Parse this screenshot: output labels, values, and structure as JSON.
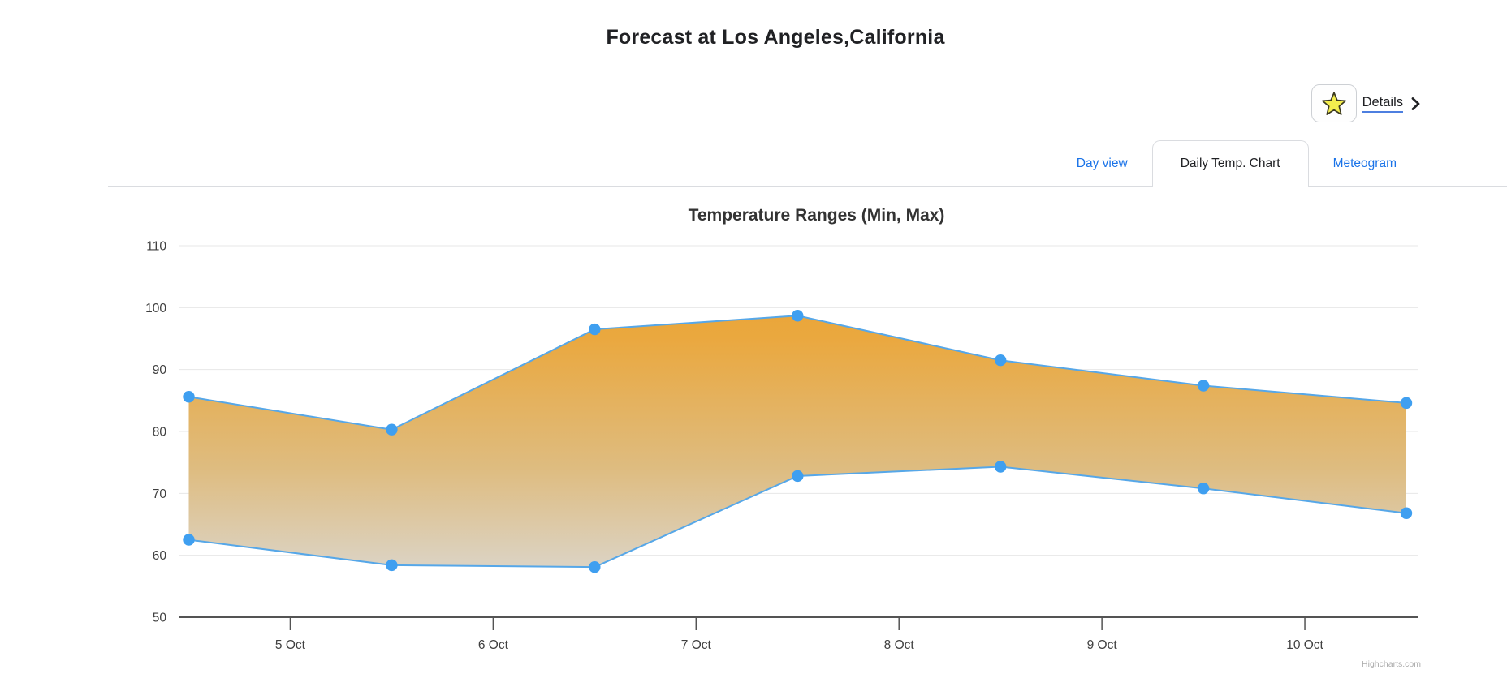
{
  "page": {
    "title": "Forecast at Los Angeles,California"
  },
  "details": {
    "label": "Details"
  },
  "tabs": [
    {
      "label": "Day view",
      "active": false
    },
    {
      "label": "Daily Temp. Chart",
      "active": true
    },
    {
      "label": "Meteogram",
      "active": false
    }
  ],
  "chart_data": {
    "type": "area",
    "subtype": "arearange",
    "title": "Temperature Ranges (Min, Max)",
    "x": [
      4.5,
      5.5,
      6.5,
      7.5,
      8.5,
      9.5,
      10.5
    ],
    "x_unit": "day of October",
    "series": [
      {
        "name": "Max",
        "values": [
          85.6,
          80.3,
          96.5,
          98.7,
          91.5,
          87.4,
          84.6
        ]
      },
      {
        "name": "Min",
        "values": [
          62.5,
          58.4,
          58.1,
          72.8,
          74.3,
          70.8,
          66.8
        ]
      }
    ],
    "xlim": [
      4.45,
      10.56
    ],
    "ylim": [
      50,
      110
    ],
    "y_ticks": [
      50,
      60,
      70,
      80,
      90,
      100,
      110
    ],
    "x_ticks": [
      5,
      6,
      7,
      8,
      9,
      10
    ],
    "x_tick_labels": [
      "5 Oct",
      "6 Oct",
      "7 Oct",
      "8 Oct",
      "9 Oct",
      "10 Oct"
    ],
    "grid": true,
    "legend": "none",
    "credit": "Highcharts.com",
    "colors": {
      "line": "#56a7e8",
      "marker": "#3f9ff0",
      "grid_line": "#e7e7e7",
      "axis_line": "#545454",
      "tick_label": "#404040",
      "title": "#333333",
      "credit": "#aaaaaa",
      "area_stops": [
        [
          0,
          "#eda02b"
        ],
        [
          0.25,
          "#eaa83f"
        ],
        [
          0.6,
          "#debc80"
        ],
        [
          0.85,
          "#dcd2c0"
        ],
        [
          1,
          "#dfdcd6"
        ]
      ]
    }
  }
}
